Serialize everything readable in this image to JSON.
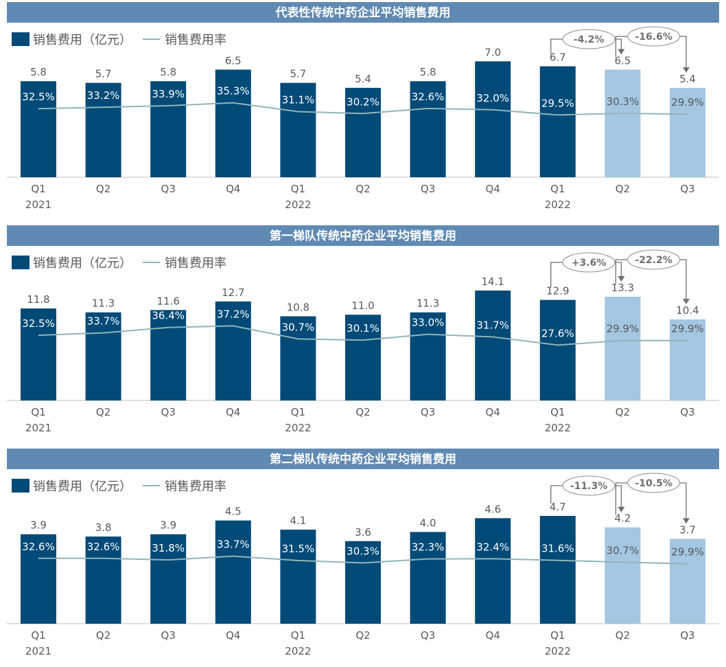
{
  "colors": {
    "bar_actual": "#004A77",
    "bar_forecast": "#A3C6E1",
    "line": "#93B4B8",
    "title_bg": "#608AB3",
    "text": "#595959",
    "annot": "#707070"
  },
  "legend": {
    "bar_label": "销售费用（亿元）",
    "line_label": "销售费用率"
  },
  "chart_data": [
    {
      "type": "bar",
      "title": "代表性传统中药企业平均销售费用",
      "categories": [
        "Q1",
        "Q2",
        "Q3",
        "Q4",
        "Q1",
        "Q2",
        "Q3",
        "Q4",
        "Q1",
        "Q2",
        "Q3"
      ],
      "year_labels": [
        "2021",
        "",
        "",
        "",
        "2022",
        "",
        "",
        "",
        "2022",
        "",
        ""
      ],
      "series": [
        {
          "name": "销售费用（亿元）",
          "values": [
            5.8,
            5.7,
            5.8,
            6.5,
            5.7,
            5.4,
            5.8,
            7.0,
            6.7,
            6.5,
            5.4
          ],
          "value_labels": [
            "5.8",
            "5.7",
            "5.8",
            "6.5",
            "5.7",
            "5.4",
            "5.8",
            "7.0",
            "6.7",
            "6.5",
            "5.4"
          ]
        },
        {
          "name": "销售费用率",
          "type": "line",
          "values": [
            32.5,
            33.2,
            33.9,
            35.3,
            31.1,
            30.2,
            32.6,
            32.0,
            29.5,
            30.3,
            29.9
          ],
          "value_labels": [
            "32.5%",
            "33.2%",
            "33.9%",
            "35.3%",
            "31.1%",
            "30.2%",
            "32.6%",
            "32.0%",
            "29.5%",
            "30.3%",
            "29.9%"
          ]
        }
      ],
      "forecast_from_index": 9,
      "annotations": [
        {
          "from": 8,
          "to": 9,
          "label": "-4.2%"
        },
        {
          "from": 9,
          "to": 10,
          "label": "-16.6%"
        }
      ]
    },
    {
      "type": "bar",
      "title": "第一梯队传统中药企业平均销售费用",
      "categories": [
        "Q1",
        "Q2",
        "Q3",
        "Q4",
        "Q1",
        "Q2",
        "Q3",
        "Q4",
        "Q1",
        "Q2",
        "Q3"
      ],
      "year_labels": [
        "2021",
        "",
        "",
        "",
        "2022",
        "",
        "",
        "",
        "2022",
        "",
        ""
      ],
      "series": [
        {
          "name": "销售费用（亿元）",
          "values": [
            11.8,
            11.3,
            11.6,
            12.7,
            10.8,
            11.0,
            11.3,
            14.1,
            12.9,
            13.3,
            10.4
          ],
          "value_labels": [
            "11.8",
            "11.3",
            "11.6",
            "12.7",
            "10.8",
            "11.0",
            "11.3",
            "14.1",
            "12.9",
            "13.3",
            "10.4"
          ]
        },
        {
          "name": "销售费用率",
          "type": "line",
          "values": [
            32.5,
            33.7,
            36.4,
            37.2,
            30.7,
            30.1,
            33.0,
            31.7,
            27.6,
            29.9,
            29.9
          ],
          "value_labels": [
            "32.5%",
            "33.7%",
            "36.4%",
            "37.2%",
            "30.7%",
            "30.1%",
            "33.0%",
            "31.7%",
            "27.6%",
            "29.9%",
            "29.9%"
          ]
        }
      ],
      "forecast_from_index": 9,
      "annotations": [
        {
          "from": 8,
          "to": 9,
          "label": "+3.6%"
        },
        {
          "from": 9,
          "to": 10,
          "label": "-22.2%"
        }
      ]
    },
    {
      "type": "bar",
      "title": "第二梯队传统中药企业平均销售费用",
      "categories": [
        "Q1",
        "Q2",
        "Q3",
        "Q4",
        "Q1",
        "Q2",
        "Q3",
        "Q4",
        "Q1",
        "Q2",
        "Q3"
      ],
      "year_labels": [
        "2021",
        "",
        "",
        "",
        "2022",
        "",
        "",
        "",
        "2022",
        "",
        ""
      ],
      "series": [
        {
          "name": "销售费用（亿元）",
          "values": [
            3.9,
            3.8,
            3.9,
            4.5,
            4.1,
            3.6,
            4.0,
            4.6,
            4.7,
            4.2,
            3.7
          ],
          "value_labels": [
            "3.9",
            "3.8",
            "3.9",
            "4.5",
            "4.1",
            "3.6",
            "4.0",
            "4.6",
            "4.7",
            "4.2",
            "3.7"
          ]
        },
        {
          "name": "销售费用率",
          "type": "line",
          "values": [
            32.6,
            32.6,
            31.8,
            33.7,
            31.5,
            30.3,
            32.3,
            32.4,
            31.6,
            30.7,
            29.9
          ],
          "value_labels": [
            "32.6%",
            "32.6%",
            "31.8%",
            "33.7%",
            "31.5%",
            "30.3%",
            "32.3%",
            "32.4%",
            "31.6%",
            "30.7%",
            "29.9%"
          ]
        }
      ],
      "forecast_from_index": 9,
      "annotations": [
        {
          "from": 8,
          "to": 9,
          "label": "-11.3%"
        },
        {
          "from": 9,
          "to": 10,
          "label": "-10.5%"
        }
      ]
    }
  ]
}
